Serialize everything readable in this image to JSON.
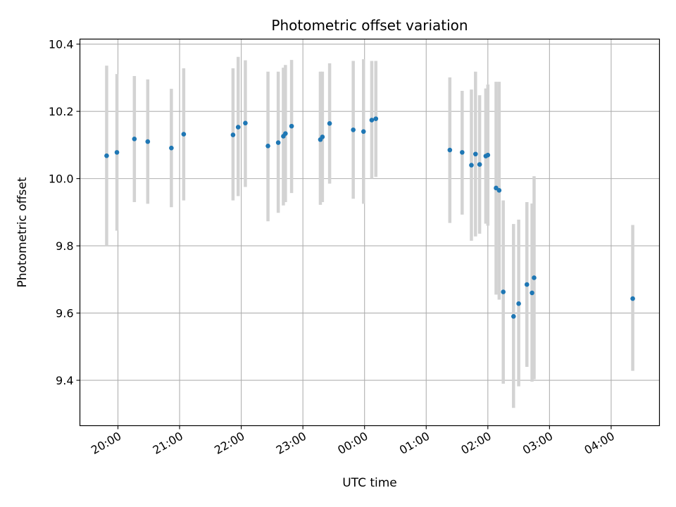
{
  "chart_data": {
    "type": "scatter",
    "title": "Photometric offset variation",
    "xlabel": "UTC time",
    "ylabel": "Photometric offset",
    "x_tick_labels": [
      "20:00",
      "21:00",
      "22:00",
      "23:00",
      "00:00",
      "01:00",
      "02:00",
      "03:00",
      "04:00"
    ],
    "y_ticks": [
      9.4,
      9.6,
      9.8,
      10.0,
      10.2,
      10.4
    ],
    "y_tick_labels": [
      "9.4",
      "9.6",
      "9.8",
      "10.0",
      "10.2",
      "10.4"
    ],
    "xlim": [
      "19:23",
      "04:47"
    ],
    "ylim": [
      9.265,
      10.415
    ],
    "grid": true,
    "colors": {
      "point": "#1f77b4",
      "errorbar": "#d3d3d3",
      "grid": "#b0b0b0"
    },
    "series": [
      {
        "points": [
          {
            "t": "19:49",
            "y": 10.068,
            "lo": 9.8,
            "hi": 10.336
          },
          {
            "t": "19:59",
            "y": 10.078,
            "lo": 9.845,
            "hi": 10.311
          },
          {
            "t": "20:16",
            "y": 10.118,
            "lo": 9.93,
            "hi": 10.305
          },
          {
            "t": "20:29",
            "y": 10.11,
            "lo": 9.925,
            "hi": 10.295
          },
          {
            "t": "20:52",
            "y": 10.091,
            "lo": 9.915,
            "hi": 10.267
          },
          {
            "t": "21:04",
            "y": 10.132,
            "lo": 9.935,
            "hi": 10.328
          },
          {
            "t": "21:52",
            "y": 10.13,
            "lo": 9.935,
            "hi": 10.328
          },
          {
            "t": "21:57",
            "y": 10.153,
            "lo": 9.948,
            "hi": 10.362
          },
          {
            "t": "22:04",
            "y": 10.165,
            "lo": 9.975,
            "hi": 10.352
          },
          {
            "t": "22:26",
            "y": 10.097,
            "lo": 9.873,
            "hi": 10.318
          },
          {
            "t": "22:36",
            "y": 10.107,
            "lo": 9.898,
            "hi": 10.318
          },
          {
            "t": "22:41",
            "y": 10.126,
            "lo": 9.92,
            "hi": 10.33
          },
          {
            "t": "22:43",
            "y": 10.134,
            "lo": 9.93,
            "hi": 10.338
          },
          {
            "t": "22:49",
            "y": 10.156,
            "lo": 9.957,
            "hi": 10.353
          },
          {
            "t": "23:17",
            "y": 10.116,
            "lo": 9.922,
            "hi": 10.318
          },
          {
            "t": "23:19",
            "y": 10.124,
            "lo": 9.93,
            "hi": 10.318
          },
          {
            "t": "23:26",
            "y": 10.164,
            "lo": 9.985,
            "hi": 10.343
          },
          {
            "t": "23:49",
            "y": 10.145,
            "lo": 9.94,
            "hi": 10.35
          },
          {
            "t": "23:59",
            "y": 10.14,
            "lo": 9.925,
            "hi": 10.355
          },
          {
            "t": "00:07",
            "y": 10.174,
            "lo": 10.0,
            "hi": 10.35
          },
          {
            "t": "00:11",
            "y": 10.178,
            "lo": 10.005,
            "hi": 10.35
          },
          {
            "t": "01:23",
            "y": 10.085,
            "lo": 9.868,
            "hi": 10.301
          },
          {
            "t": "01:35",
            "y": 10.078,
            "lo": 9.893,
            "hi": 10.261
          },
          {
            "t": "01:44",
            "y": 10.04,
            "lo": 9.815,
            "hi": 10.265
          },
          {
            "t": "01:48",
            "y": 10.073,
            "lo": 9.828,
            "hi": 10.318
          },
          {
            "t": "01:52",
            "y": 10.042,
            "lo": 9.836,
            "hi": 10.248
          },
          {
            "t": "01:58",
            "y": 10.067,
            "lo": 9.866,
            "hi": 10.268
          },
          {
            "t": "02:00",
            "y": 10.07,
            "lo": 9.86,
            "hi": 10.28
          },
          {
            "t": "02:08",
            "y": 9.972,
            "lo": 9.655,
            "hi": 10.288
          },
          {
            "t": "02:11",
            "y": 9.965,
            "lo": 9.64,
            "hi": 10.288
          },
          {
            "t": "02:15",
            "y": 9.663,
            "lo": 9.39,
            "hi": 9.935
          },
          {
            "t": "02:25",
            "y": 9.59,
            "lo": 9.318,
            "hi": 9.865
          },
          {
            "t": "02:30",
            "y": 9.628,
            "lo": 9.382,
            "hi": 9.878
          },
          {
            "t": "02:38",
            "y": 9.685,
            "lo": 9.44,
            "hi": 9.93
          },
          {
            "t": "02:43",
            "y": 9.66,
            "lo": 9.396,
            "hi": 9.926
          },
          {
            "t": "02:45",
            "y": 9.705,
            "lo": 9.403,
            "hi": 10.007
          },
          {
            "t": "04:21",
            "y": 9.643,
            "lo": 9.428,
            "hi": 9.862
          }
        ]
      }
    ]
  }
}
